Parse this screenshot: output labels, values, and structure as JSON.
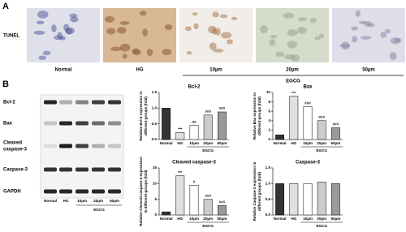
{
  "panel_a": {
    "label": "A",
    "row_label": "TUNEL",
    "images": [
      "Normal",
      "HG",
      "10µm",
      "20µm",
      "50µm"
    ],
    "group": "EGCG"
  },
  "panel_b": {
    "label": "B",
    "blot_rows": [
      "Bcl-2",
      "Bax",
      [
        "Cleaved",
        "caspase-3"
      ],
      "Caspase-3",
      "GAPDH"
    ],
    "lanes": [
      "Normal",
      "HG",
      "10µm",
      "20µm",
      "50µm"
    ],
    "group": "EGCG"
  },
  "chart_data": [
    {
      "type": "bar",
      "title": "Bcl-2",
      "ylabel": [
        "Relative Bcl-2 expression in",
        "different groups (fold)"
      ],
      "categories": [
        "Normal",
        "HG",
        "10µm",
        "20µm",
        "50µm"
      ],
      "values": [
        1.0,
        0.22,
        0.45,
        0.78,
        0.88
      ],
      "annotations": [
        null,
        "***",
        "##",
        "###",
        "###"
      ],
      "colors": [
        "#333333",
        "#e0e0e0",
        "#ffffff",
        "#cccccc",
        "#9a9a9a"
      ],
      "ylim": [
        0,
        1.5
      ],
      "yticks": [
        {
          "value": 0,
          "label": "0.0"
        },
        {
          "value": 0.5,
          "label": "0.5"
        },
        {
          "value": 1,
          "label": "1.0"
        },
        {
          "value": 1.5,
          "label": "1.5"
        }
      ],
      "group": "EGCG"
    },
    {
      "type": "bar",
      "title": "Bax",
      "ylabel": [
        "Relative Bax expression in",
        "different groups (fold)"
      ],
      "categories": [
        "Normal",
        "HG",
        "10µm",
        "20µm",
        "50µm"
      ],
      "values": [
        1.0,
        9.2,
        7.0,
        4.0,
        2.5
      ],
      "annotations": [
        null,
        "***",
        "###",
        "###",
        "###"
      ],
      "colors": [
        "#333333",
        "#e0e0e0",
        "#ffffff",
        "#cccccc",
        "#9a9a9a"
      ],
      "ylim": [
        0,
        10
      ],
      "yticks": [
        0,
        2,
        4,
        6,
        8,
        10
      ],
      "group": "EGCG"
    },
    {
      "type": "bar",
      "title": "Cleaved caspase-3",
      "ylabel": [
        "Relative Cleaved caspase-3 expression",
        "in different groups (fold)"
      ],
      "categories": [
        "Normal",
        "HG",
        "10µm",
        "20µm",
        "50µm"
      ],
      "values": [
        1.0,
        12.5,
        9.5,
        5.0,
        3.0
      ],
      "annotations": [
        null,
        "***",
        "#",
        "###",
        "###"
      ],
      "colors": [
        "#333333",
        "#e0e0e0",
        "#ffffff",
        "#cccccc",
        "#9a9a9a"
      ],
      "ylim": [
        0,
        15
      ],
      "yticks": [
        0,
        5,
        10,
        15
      ],
      "group": "EGCG"
    },
    {
      "type": "bar",
      "title": "Caspase-3",
      "ylabel": [
        "Relative Caspase-3 expression in",
        "different groups (fold)"
      ],
      "categories": [
        "Normal",
        "HG",
        "10µm",
        "20µm",
        "50µm"
      ],
      "values": [
        1.0,
        1.0,
        1.0,
        1.05,
        1.0
      ],
      "colors": [
        "#333333",
        "#e0e0e0",
        "#ffffff",
        "#cccccc",
        "#9a9a9a"
      ],
      "ylim": [
        0,
        1.5
      ],
      "yticks": [
        {
          "value": 0,
          "label": "0.0"
        },
        {
          "value": 0.5,
          "label": "0.5"
        },
        {
          "value": 1,
          "label": "1.0"
        },
        {
          "value": 1.5,
          "label": "1.5"
        }
      ],
      "group": "EGCG"
    }
  ]
}
